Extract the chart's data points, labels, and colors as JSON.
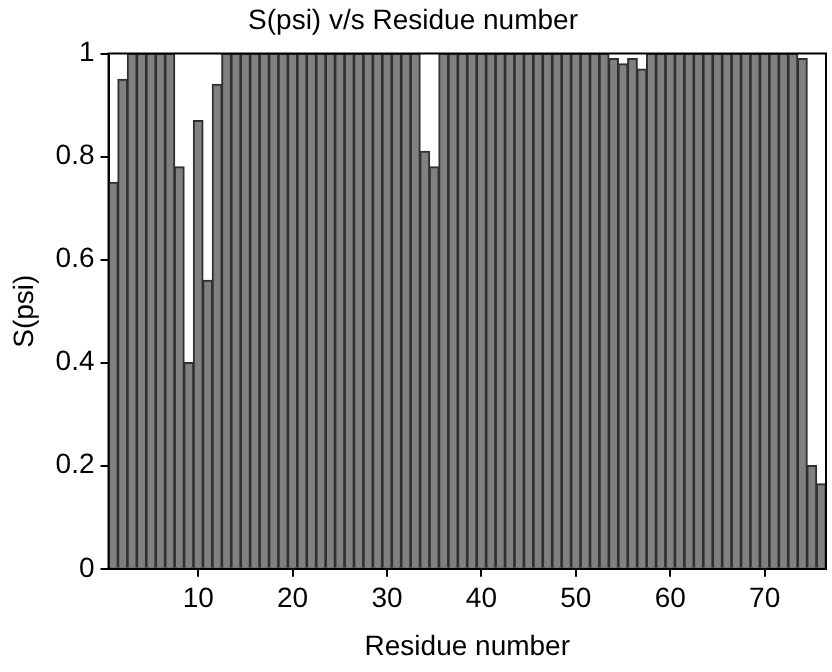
{
  "chart_data": {
    "type": "bar",
    "title": "S(psi) v/s Residue number",
    "xlabel": "Residue number",
    "ylabel": "S(psi)",
    "x": [
      1,
      2,
      3,
      4,
      5,
      6,
      7,
      8,
      9,
      10,
      11,
      12,
      13,
      14,
      15,
      16,
      17,
      18,
      19,
      20,
      21,
      22,
      23,
      24,
      25,
      26,
      27,
      28,
      29,
      30,
      31,
      32,
      33,
      34,
      35,
      36,
      37,
      38,
      39,
      40,
      41,
      42,
      43,
      44,
      45,
      46,
      47,
      48,
      49,
      50,
      51,
      52,
      53,
      54,
      55,
      56,
      57,
      58,
      59,
      60,
      61,
      62,
      63,
      64,
      65,
      66,
      67,
      68,
      69,
      70,
      71,
      72,
      73,
      74,
      75,
      76
    ],
    "series": [
      {
        "color": "#808080",
        "values": [
          0.75,
          0.95,
          1,
          1,
          1,
          1,
          1,
          0.78,
          0.4,
          0.87,
          0.56,
          0.94,
          1,
          1,
          1,
          1,
          1,
          1,
          1,
          1,
          1,
          1,
          1,
          1,
          1,
          1,
          1,
          1,
          1,
          1,
          1,
          1,
          1,
          0.81,
          0.78,
          1,
          1,
          1,
          1,
          1,
          1,
          1,
          1,
          1,
          1,
          1,
          1,
          1,
          1,
          1,
          1,
          1,
          1,
          0.99,
          0.98,
          0.99,
          0.97,
          1,
          1,
          1,
          1,
          1,
          1,
          1,
          1,
          1,
          1,
          1,
          1,
          1,
          1,
          1,
          1,
          0.99,
          0.2,
          0.165
        ]
      }
    ],
    "xlim": [
      0.5,
      76.5
    ],
    "xticks": [
      10,
      20,
      30,
      40,
      50,
      60,
      70
    ],
    "ylim": [
      0,
      1
    ],
    "yticks": [
      0,
      0.2,
      0.4,
      0.6,
      0.8,
      1
    ],
    "grid": false,
    "legend": false
  }
}
